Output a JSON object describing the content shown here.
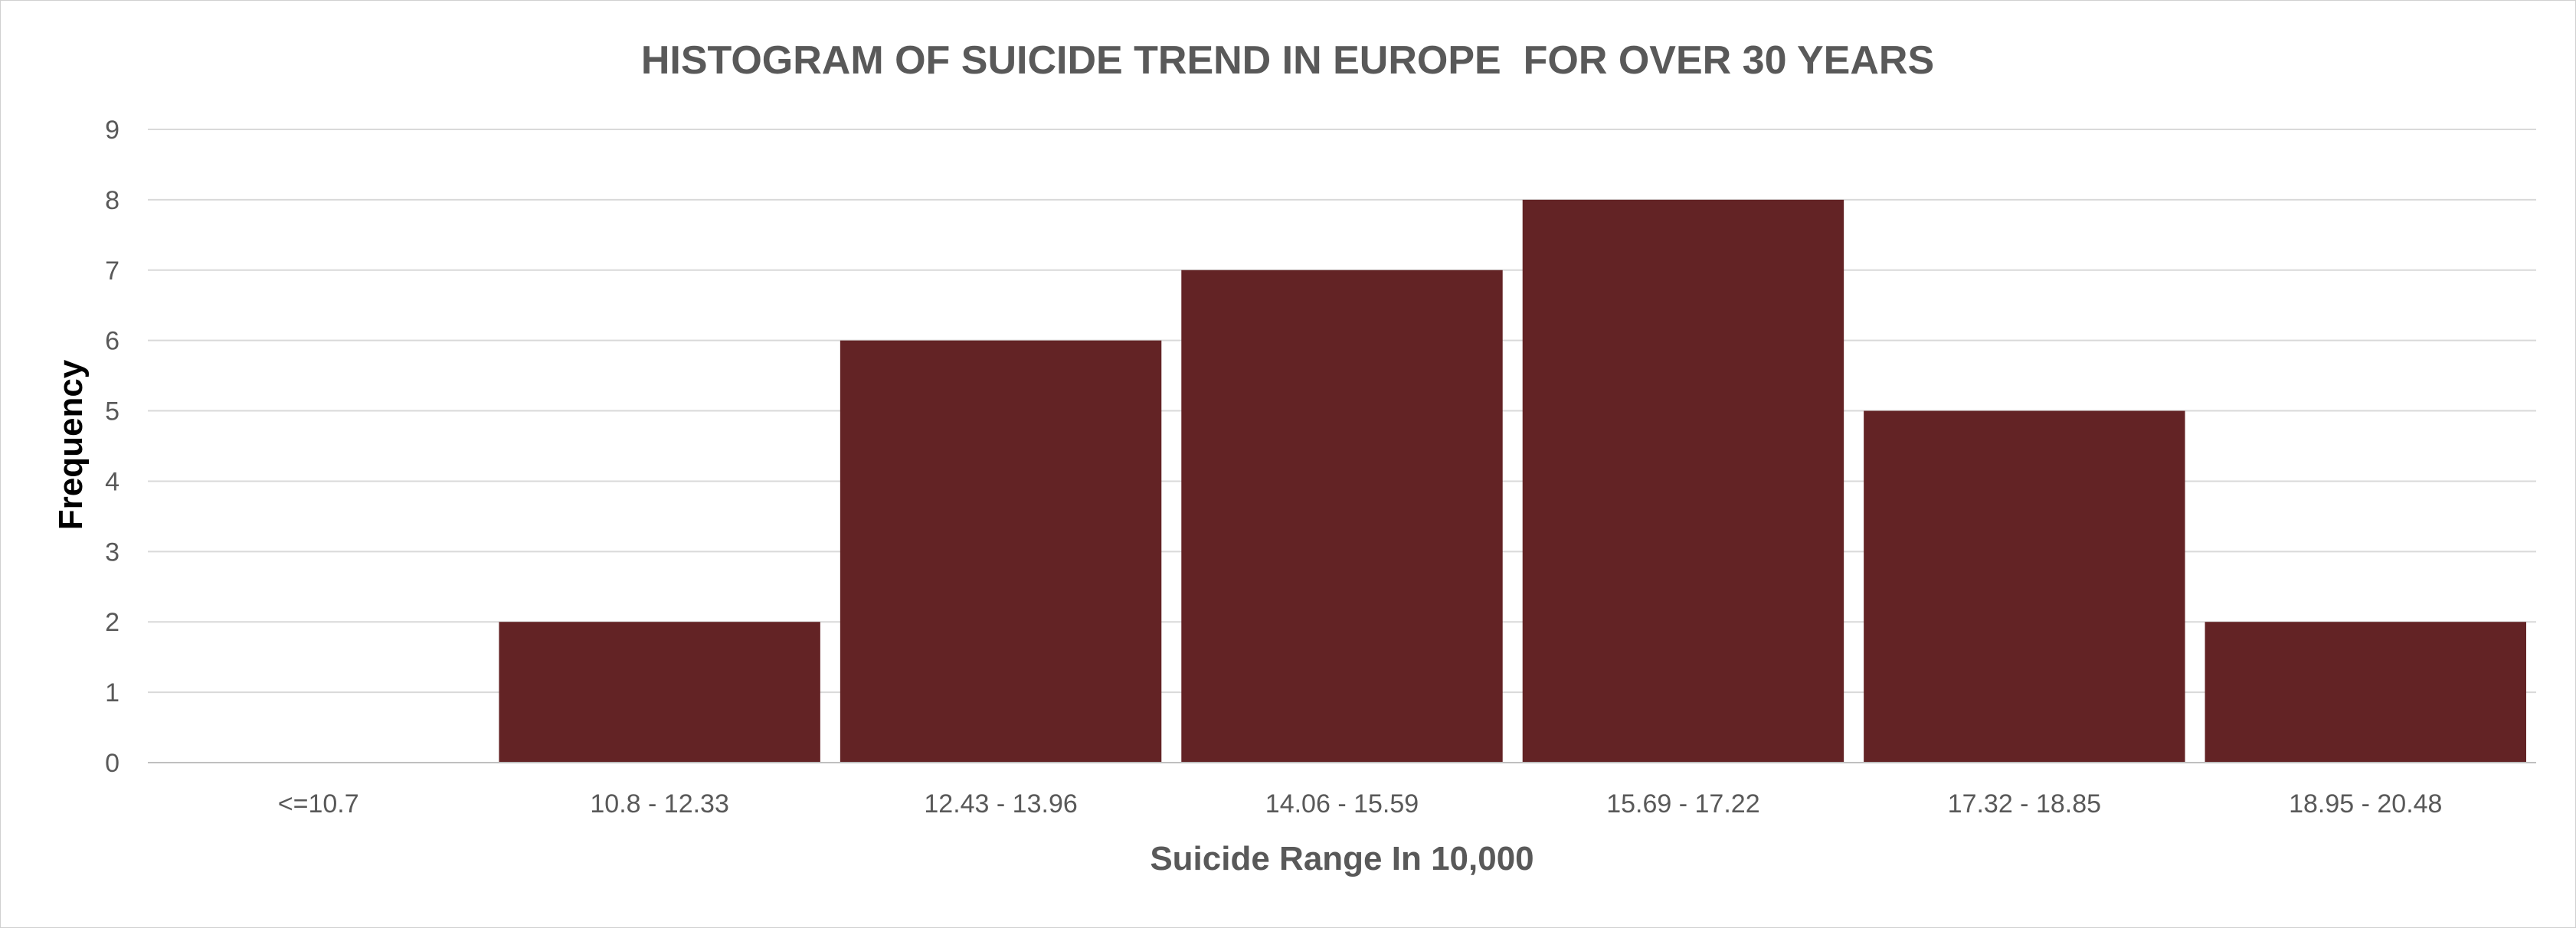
{
  "chart_data": {
    "type": "bar",
    "title": "HISTOGRAM OF SUICIDE TREND IN EUROPE  FOR OVER 30 YEARS",
    "xlabel": "Suicide Range In 10,000",
    "ylabel": "Frequency",
    "categories": [
      "<=10.7",
      "10.8 - 12.33",
      "12.43 - 13.96",
      "14.06 - 15.59",
      "15.69 - 17.22",
      "17.32 - 18.85",
      "18.95 - 20.48"
    ],
    "values": [
      0,
      2,
      6,
      7,
      8,
      5,
      2
    ],
    "ylim": [
      0,
      9
    ],
    "yticks": [
      "0",
      "1",
      "2",
      "3",
      "4",
      "5",
      "6",
      "7",
      "8",
      "9"
    ],
    "grid": true,
    "legend": "none",
    "bar_color": "#632325",
    "xlabel_color": "#595959",
    "ylabel_color": "#000000"
  }
}
